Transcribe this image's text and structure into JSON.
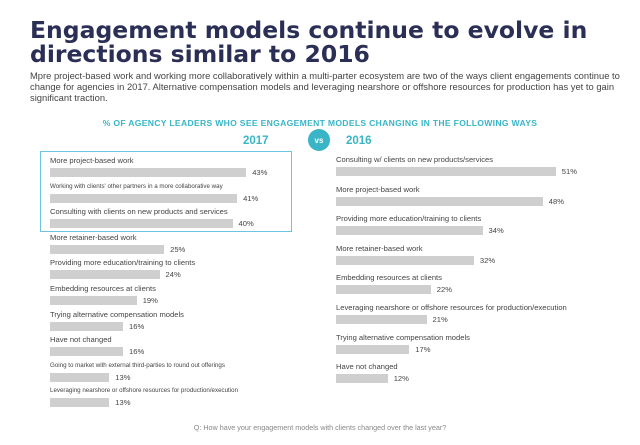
{
  "header": {
    "title": "Engagement models continue to evolve in directions similar to 2016",
    "subtitle": "Mpre project-based work and working more collaboratively within a multi-parter ecosystem are two of the ways client engagements continue to change for agencies in 2017. Alternative compensation models and leveraging nearshore or offshore resources for production has yet to gain significant traction."
  },
  "footnote": "Q: How have your engagement models with clients changed over the last year?",
  "colors": {
    "accent": "#39b5c6",
    "title": "#2b2f55",
    "bar": "#cfcfcf",
    "highlight_border": "#6ec3e0"
  },
  "chart_data": [
    {
      "type": "bar",
      "title": "% OF AGENCY LEADERS WHO SEE ENGAGEMENT MODELS CHANGING IN THE FOLLOWING WAYS",
      "series_label": "2017",
      "vs_label": "vs",
      "categories": [
        "More project-based work",
        "Working with clients' other partners in a more collaborative way",
        "Consulting with clients on new products and services",
        "More retainer-based work",
        "Providing more education/training to clients",
        "Embedding resources at clients",
        "Trying alternative compensation models",
        "Have not changed",
        "Going to market with external third-parties to round out offerings",
        "Leveraging nearshore or offshore resources for production/execution"
      ],
      "values": [
        43,
        41,
        40,
        25,
        24,
        19,
        16,
        16,
        13,
        13
      ],
      "value_labels": [
        "43%",
        "41%",
        "40%",
        "25%",
        "24%",
        "19%",
        "16%",
        "16%",
        "13%",
        "13%"
      ],
      "highlighted_top": 3,
      "xlim": [
        0,
        55
      ]
    },
    {
      "type": "bar",
      "series_label": "2016",
      "categories": [
        "Consulting w/ clients on new products/services",
        "More project-based work",
        "Providing more education/training to clients",
        "More retainer-based work",
        "Embedding resources at clients",
        "Leveraging nearshore or offshore resources for production/execution",
        "Trying alternative compensation models",
        "Have not changed"
      ],
      "values": [
        51,
        48,
        34,
        32,
        22,
        21,
        17,
        12
      ],
      "value_labels": [
        "51%",
        "48%",
        "34%",
        "32%",
        "22%",
        "21%",
        "17%",
        "12%"
      ],
      "xlim": [
        0,
        55
      ]
    }
  ]
}
